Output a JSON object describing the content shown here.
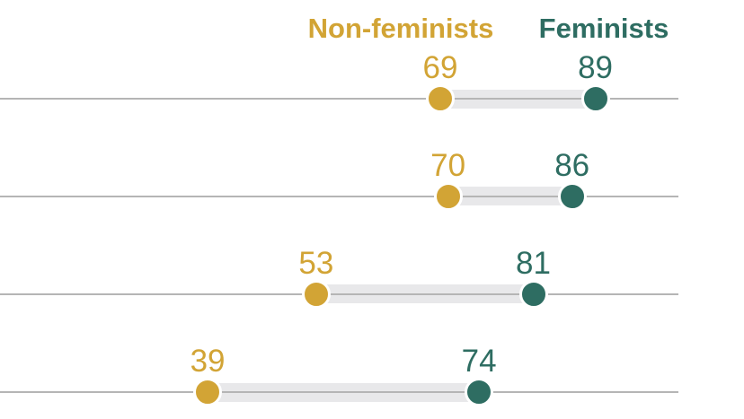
{
  "colors": {
    "nonfeminist": "#d2a435",
    "feminist": "#2e6d62",
    "bar": "#e8e8ea",
    "gridline": "#b5b5b5",
    "background": "#ffffff"
  },
  "legend": {
    "nonfeminists_label": "Non-feminists",
    "feminists_label": "Feminists"
  },
  "chart_data": {
    "type": "dumbbell",
    "title": "",
    "xlabel": "",
    "ylabel": "",
    "value_scale": [
      0,
      100
    ],
    "legend_position": "top",
    "grid": "horizontal-row-lines",
    "series": [
      {
        "name": "Non-feminists",
        "color": "#d2a435",
        "values": [
          69,
          70,
          53,
          39
        ]
      },
      {
        "name": "Feminists",
        "color": "#2e6d62",
        "values": [
          89,
          86,
          81,
          74
        ]
      }
    ],
    "rows": [
      {
        "nonfeminist": 69,
        "feminist": 89
      },
      {
        "nonfeminist": 70,
        "feminist": 86
      },
      {
        "nonfeminist": 53,
        "feminist": 81
      },
      {
        "nonfeminist": 39,
        "feminist": 74
      }
    ]
  }
}
